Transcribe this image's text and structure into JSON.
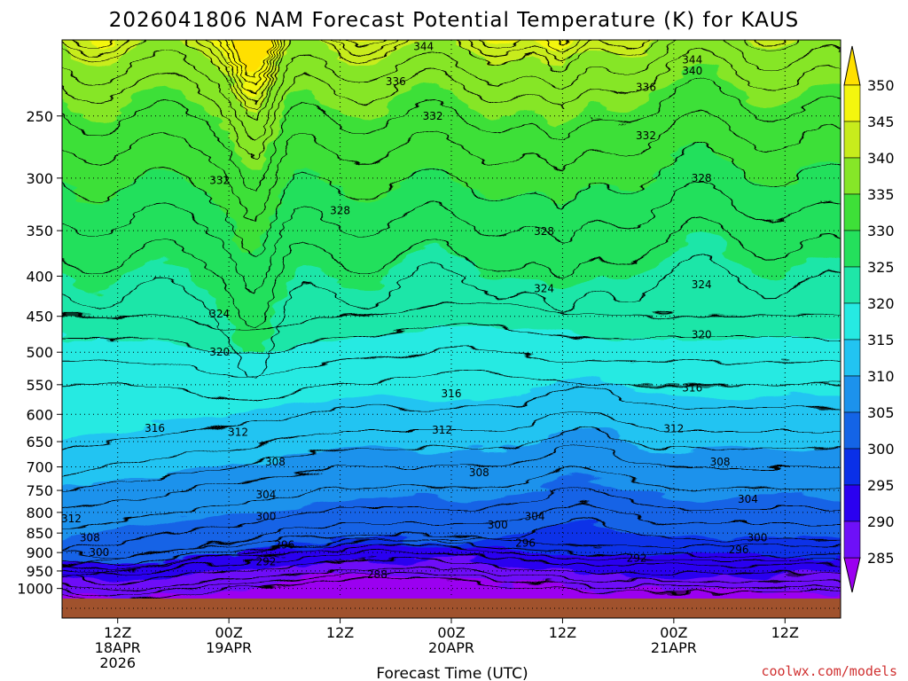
{
  "title": "2026041806 NAM Forecast Potential Temperature (K) for KAUS",
  "credit": "coolwx.com/models",
  "chart_data": {
    "type": "heatmap",
    "title": "2026041806 NAM Forecast Potential Temperature (K) for KAUS",
    "xlabel": "Forecast Time (UTC)",
    "ylabel": "",
    "x_range": [
      "2026-04-18 06Z",
      "2026-04-21 18Z"
    ],
    "x_ticks": [
      {
        "t": 6,
        "lines": [
          "12Z",
          "18APR",
          "2026"
        ]
      },
      {
        "t": 18,
        "lines": [
          "00Z",
          "19APR"
        ]
      },
      {
        "t": 30,
        "lines": [
          "12Z"
        ]
      },
      {
        "t": 42,
        "lines": [
          "00Z",
          "20APR"
        ]
      },
      {
        "t": 54,
        "lines": [
          "12Z"
        ]
      },
      {
        "t": 66,
        "lines": [
          "00Z",
          "21APR"
        ]
      },
      {
        "t": 78,
        "lines": [
          "12Z"
        ]
      }
    ],
    "y_ticks": [
      "250",
      "300",
      "350",
      "400",
      "450",
      "500",
      "550",
      "600",
      "650",
      "700",
      "750",
      "800",
      "850",
      "900",
      "950",
      "1000"
    ],
    "y_values": [
      250,
      300,
      350,
      400,
      450,
      500,
      550,
      600,
      650,
      700,
      750,
      800,
      850,
      900,
      950,
      1000
    ],
    "ylim": [
      200,
      1030
    ],
    "y_scale": "log",
    "y_inverted": true,
    "grid": true,
    "colorbar": {
      "levels": [
        285,
        290,
        295,
        300,
        305,
        310,
        315,
        320,
        325,
        330,
        335,
        340,
        345,
        350
      ],
      "labels": [
        "350",
        "345",
        "340",
        "335",
        "330",
        "325",
        "320",
        "315",
        "310",
        "305",
        "300",
        "295",
        "290",
        "285"
      ],
      "colors": [
        "#9b00f0",
        "#6e10f8",
        "#2a00f0",
        "#0a30e8",
        "#1464e6",
        "#1c92ec",
        "#22c4f2",
        "#26eae2",
        "#1fe6a8",
        "#24e05c",
        "#3ee038",
        "#86e628",
        "#c8ec1c",
        "#f4f60e",
        "#ffe000"
      ]
    },
    "isotherms": [
      {
        "level": 288,
        "label": "288",
        "at": [
          34,
          960
        ]
      },
      {
        "level": 292,
        "label": "292",
        "at": [
          22,
          925,
          62,
          915
        ]
      },
      {
        "level": 296,
        "label": "296",
        "at": [
          24,
          880,
          50,
          875,
          73,
          893
        ]
      },
      {
        "level": 300,
        "label": "300",
        "at": [
          4,
          900,
          22,
          810,
          47,
          830,
          75,
          862
        ]
      },
      {
        "level": 304,
        "label": "304",
        "at": [
          22,
          760,
          51,
          810,
          74,
          770
        ]
      },
      {
        "level": 308,
        "label": "308",
        "at": [
          3,
          862,
          23,
          690,
          45,
          712,
          71,
          690
        ]
      },
      {
        "level": 312,
        "label": "312",
        "at": [
          1,
          815,
          19,
          632,
          41,
          628,
          66,
          626
        ]
      },
      {
        "level": 316,
        "label": "316",
        "at": [
          10,
          625,
          42,
          565,
          68,
          555
        ]
      },
      {
        "level": 320,
        "label": "320",
        "at": [
          17,
          500,
          69,
          475
        ]
      },
      {
        "level": 324,
        "label": "324",
        "at": [
          17,
          447,
          52,
          415,
          69,
          410
        ]
      },
      {
        "level": 328,
        "label": "328",
        "at": [
          30,
          330,
          52,
          351,
          69,
          300
        ]
      },
      {
        "level": 332,
        "label": "332",
        "at": [
          17,
          302,
          40,
          250,
          63,
          265
        ]
      },
      {
        "level": 336,
        "label": "336",
        "at": [
          36,
          226,
          63,
          230
        ]
      },
      {
        "level": 340,
        "label": "340",
        "at": [
          68,
          219
        ]
      },
      {
        "level": 344,
        "label": "344",
        "at": [
          39,
          204,
          68,
          212
        ]
      }
    ]
  }
}
